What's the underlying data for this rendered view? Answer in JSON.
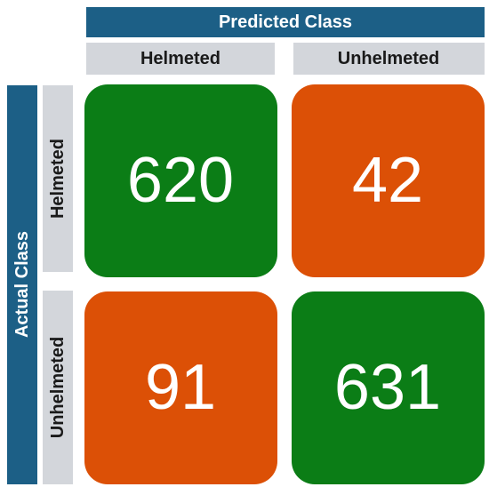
{
  "header": {
    "predicted": "Predicted Class",
    "actual": "Actual Class"
  },
  "columns": [
    "Helmeted",
    "Unhelmeted"
  ],
  "rows": [
    {
      "label": "Helmeted",
      "cells": [
        620,
        42
      ]
    },
    {
      "label": "Unhelmeted",
      "cells": [
        91,
        631
      ]
    }
  ]
}
